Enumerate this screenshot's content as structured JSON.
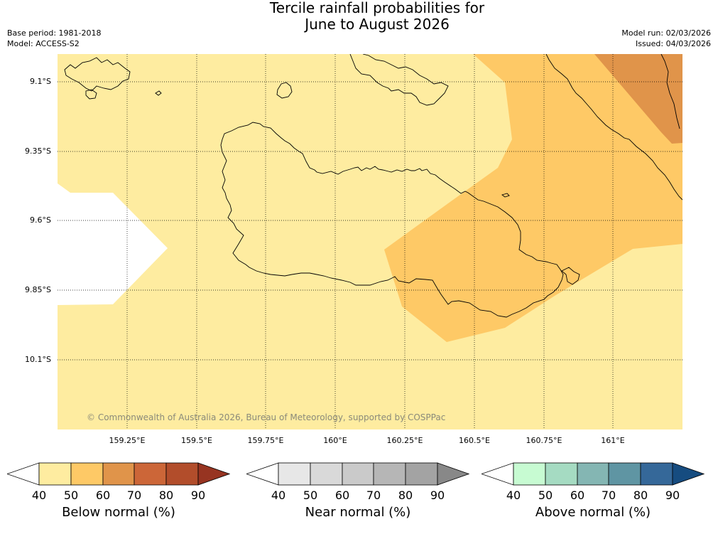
{
  "title": {
    "line1": "Tercile rainfall probabilities for",
    "line2": "June to August 2026"
  },
  "meta": {
    "base_period": "Base period: 1981-2018",
    "model": "Model: ACCESS-S2",
    "model_run": "Model run: 02/03/2026",
    "issued": "Issued: 04/03/2026"
  },
  "map": {
    "latitude_labels": [
      "9.1°S",
      "9.35°S",
      "9.6°S",
      "9.85°S",
      "10.1°S"
    ],
    "longitude_labels": [
      "159.25°E",
      "159.5°E",
      "159.75°E",
      "160°E",
      "160.25°E",
      "160.5°E",
      "160.75°E",
      "161°E"
    ],
    "copyright": "© Commonwealth of Australia 2026, Bureau of Meteorology, supported by COSPPac",
    "colors": {
      "below_50": "#feeca0",
      "below_60": "#fec966",
      "below_70": "#e0944a",
      "no_data": "#ffffff",
      "coast": "#000000",
      "grid": "#000000"
    }
  },
  "legends": [
    {
      "title": "Below normal (%)",
      "ticks": [
        "40",
        "50",
        "60",
        "70",
        "80",
        "90"
      ],
      "colors": [
        "#ffffff",
        "#feeca0",
        "#fec966",
        "#e0944a",
        "#cc6638",
        "#b24d2b",
        "#973421"
      ]
    },
    {
      "title": "Near normal (%)",
      "ticks": [
        "40",
        "50",
        "60",
        "70",
        "80",
        "90"
      ],
      "colors": [
        "#ffffff",
        "#e7e7e7",
        "#d9d9d9",
        "#cacaca",
        "#b6b6b6",
        "#a3a3a3",
        "#888888"
      ]
    },
    {
      "title": "Above normal (%)",
      "ticks": [
        "40",
        "50",
        "60",
        "70",
        "80",
        "90"
      ],
      "colors": [
        "#ffffff",
        "#c7fbd2",
        "#a5dbc2",
        "#84b6b3",
        "#5f95a3",
        "#356899",
        "#164c80"
      ]
    }
  ]
}
